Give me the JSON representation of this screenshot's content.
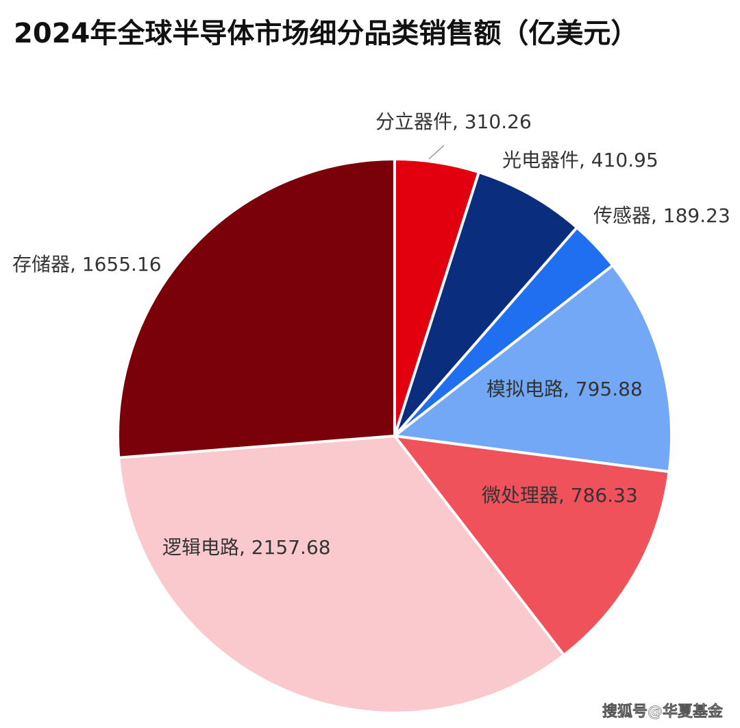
{
  "chart_data": {
    "type": "pie",
    "title": "2024年全球半导体市场细分品类销售额（亿美元）",
    "values": [
      310.26,
      410.95,
      189.23,
      795.88,
      786.33,
      2157.68,
      1655.16
    ],
    "value_labels": [
      "分立器件, 310.26",
      "光电器件, 410.95",
      "传感器, 189.23",
      "模拟电路, 795.88",
      "微处理器, 786.33",
      "逻辑电路, 2157.68",
      "存储器, 1655.16"
    ],
    "colors": [
      "#e2000f",
      "#0b2d7e",
      "#1f6ff0",
      "#72a8f5",
      "#f0525c",
      "#f9c9cd",
      "#7a0009"
    ]
  },
  "watermark": "搜狐号@华夏基金"
}
